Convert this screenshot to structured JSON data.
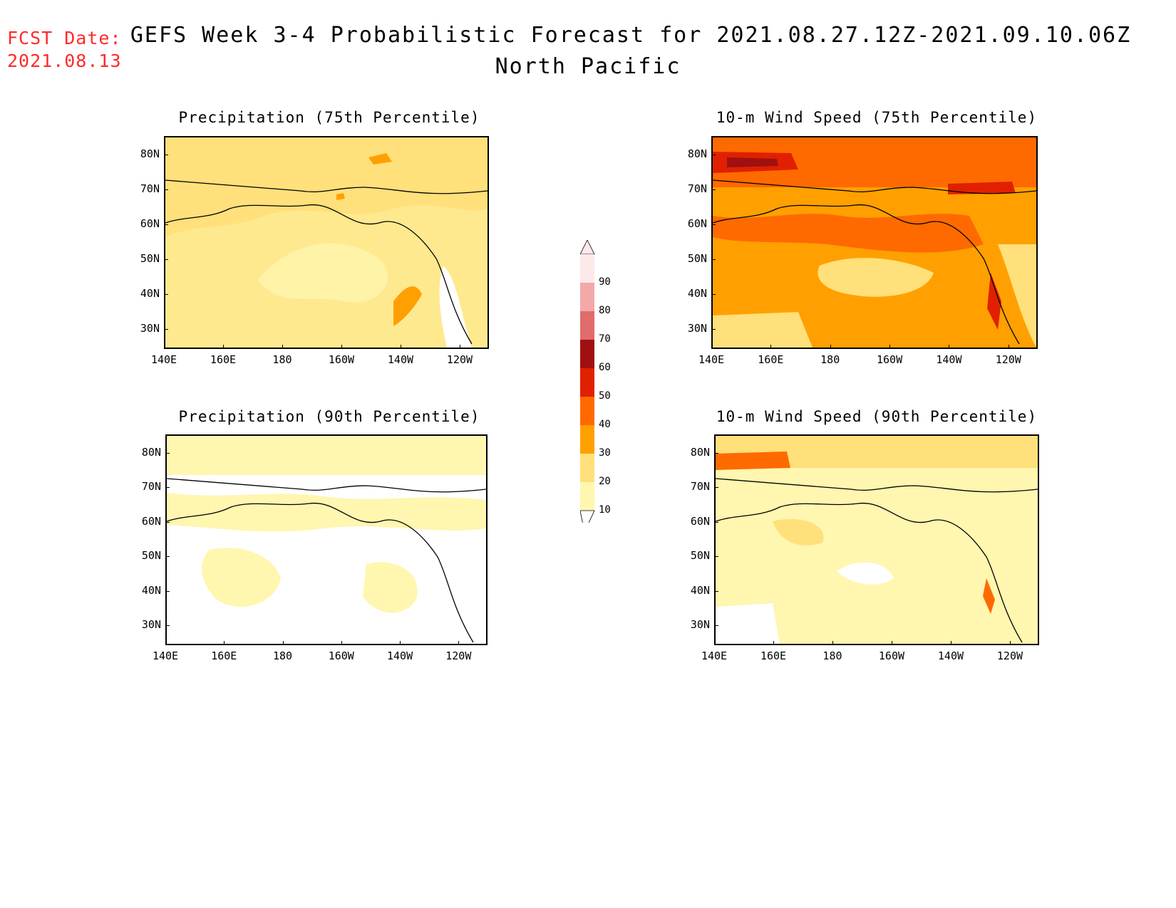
{
  "header": {
    "fcst_label": "FCST Date:",
    "fcst_date": "2021.08.13",
    "title": "GEFS Week 3-4 Probabilistic Forecast for 2021.08.27.12Z-2021.09.10.06Z",
    "subtitle": "North Pacific"
  },
  "axes": {
    "lat_labels": [
      "80N",
      "70N",
      "60N",
      "50N",
      "40N",
      "30N"
    ],
    "lon_labels": [
      "140E",
      "160E",
      "180",
      "160W",
      "140W",
      "120W"
    ]
  },
  "panels": [
    {
      "id": "precip75",
      "title": "Precipitation (75th Percentile)"
    },
    {
      "id": "wind75",
      "title": "10-m Wind Speed (75th Percentile)"
    },
    {
      "id": "precip90",
      "title": "Precipitation (90th Percentile)"
    },
    {
      "id": "wind90",
      "title": "10-m Wind Speed (90th Percentile)"
    }
  ],
  "colorbar": {
    "levels": [
      "90",
      "80",
      "70",
      "60",
      "50",
      "40",
      "30",
      "20",
      "10"
    ],
    "colors": [
      "#fde8ea",
      "#f4a8a8",
      "#e06c6c",
      "#a01010",
      "#e02000",
      "#ff6a00",
      "#ffa000",
      "#ffe07a",
      "#fff6b0"
    ]
  }
}
